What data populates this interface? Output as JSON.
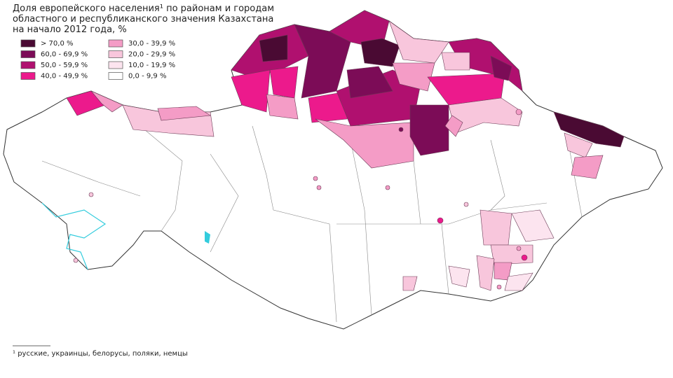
{
  "header": {
    "title_lines": [
      "Доля европейского населения¹ по районам и городам",
      "областного и республиканского значения Казахстана",
      "на начало 2012 года, %"
    ]
  },
  "legend": {
    "items": [
      {
        "label": "> 70,0 %",
        "color": "#4a0a33"
      },
      {
        "label": "60,0 - 69,9 %",
        "color": "#7c0c57"
      },
      {
        "label": "50,0 - 59,9 %",
        "color": "#b0106f"
      },
      {
        "label": "40,0 - 49,9 %",
        "color": "#ec1a8c"
      },
      {
        "label": "30,0 - 39,9 %",
        "color": "#f49cc6"
      },
      {
        "label": "20,0 - 29,9 %",
        "color": "#f8c6dc"
      },
      {
        "label": "10,0 - 19,9 %",
        "color": "#fce4ef"
      },
      {
        "label": "0,0 - 9,9 %",
        "color": "#ffffff"
      }
    ]
  },
  "footnote": "¹ русские, украинцы, белорусы, поляки, немцы"
}
